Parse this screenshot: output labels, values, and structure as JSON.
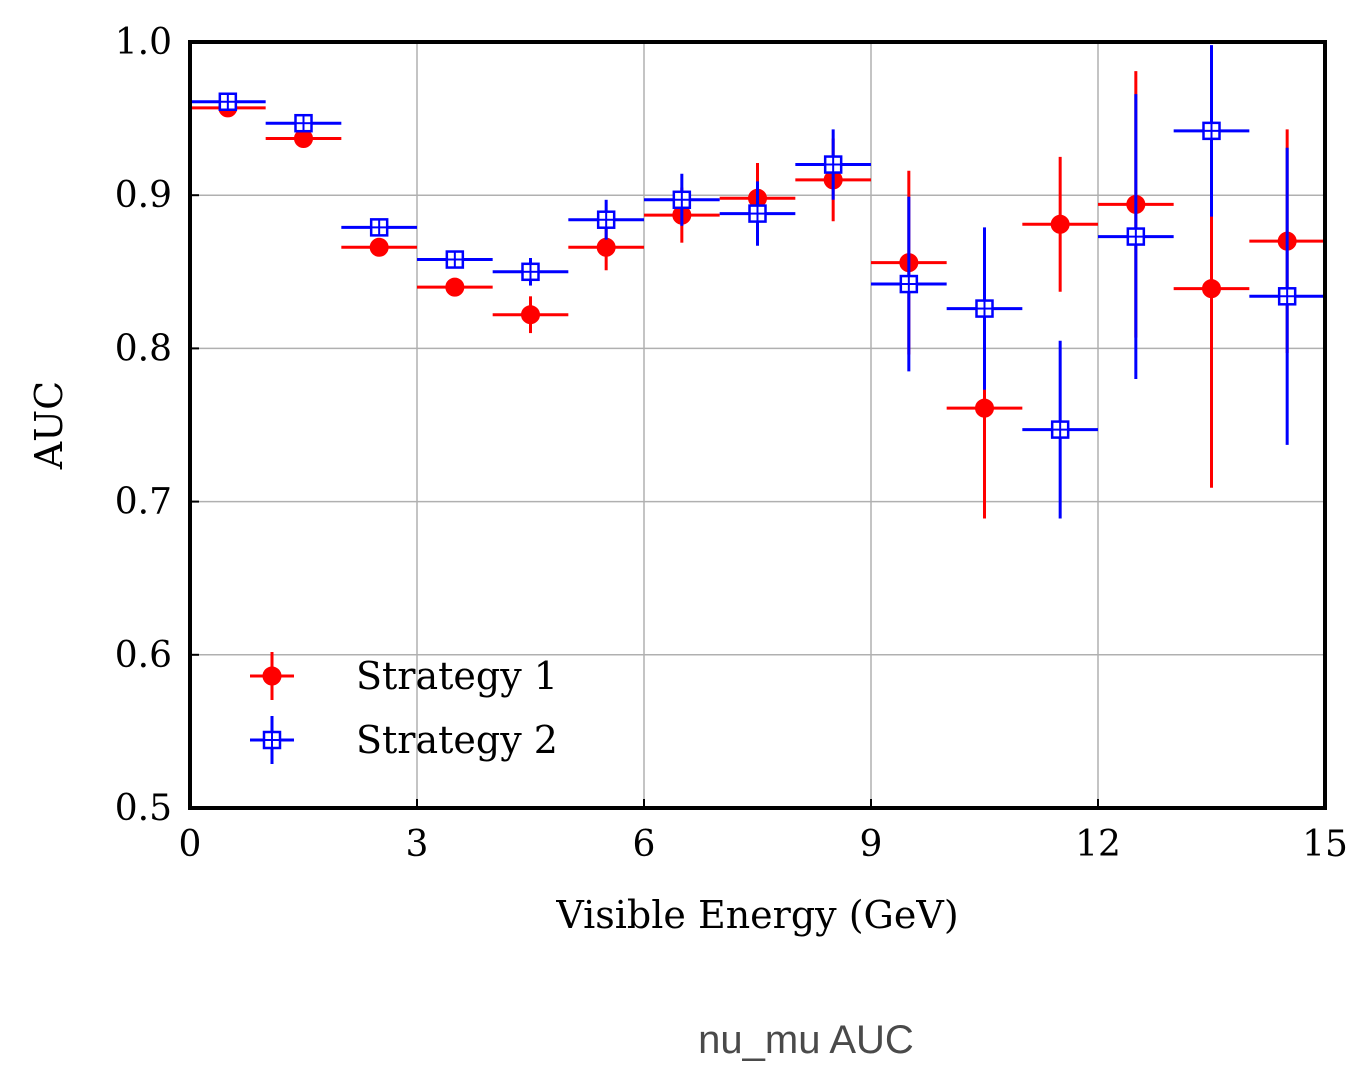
{
  "caption": "nu_mu AUC",
  "chart_data": {
    "type": "scatter",
    "xlabel": "Visible Energy (GeV)",
    "ylabel": "AUC",
    "xlim": [
      0,
      15
    ],
    "ylim": [
      0.5,
      1.0
    ],
    "xticks": [
      0,
      3,
      6,
      9,
      12,
      15
    ],
    "yticks": [
      0.5,
      0.6,
      0.7,
      0.8,
      0.9,
      1.0
    ],
    "xtick_labels": [
      "0",
      "3",
      "6",
      "9",
      "12",
      "15"
    ],
    "ytick_labels": [
      "0.5",
      "0.6",
      "0.7",
      "0.8",
      "0.9",
      "1.0"
    ],
    "grid": true,
    "legend_position": "lower-left",
    "x": [
      0.5,
      1.5,
      2.5,
      3.5,
      4.5,
      5.5,
      6.5,
      7.5,
      8.5,
      9.5,
      10.5,
      11.5,
      12.5,
      13.5,
      14.5
    ],
    "x_half_width": 0.5,
    "series": [
      {
        "name": "Strategy 1",
        "color": "#ff0000",
        "marker": "filled-circle",
        "values": [
          0.957,
          0.937,
          0.866,
          0.84,
          0.822,
          0.866,
          0.887,
          0.898,
          0.91,
          0.856,
          0.761,
          0.881,
          0.894,
          0.839,
          0.87
        ],
        "errors": [
          0.003,
          0.003,
          0.003,
          0.004,
          0.012,
          0.015,
          0.018,
          0.023,
          0.027,
          0.06,
          0.072,
          0.044,
          0.087,
          0.13,
          0.073
        ]
      },
      {
        "name": "Strategy 2",
        "color": "#0000ff",
        "marker": "open-square",
        "values": [
          0.961,
          0.947,
          0.879,
          0.858,
          0.85,
          0.884,
          0.897,
          0.888,
          0.92,
          0.842,
          0.826,
          0.747,
          0.873,
          0.942,
          0.834
        ],
        "errors": [
          0.002,
          0.003,
          0.004,
          0.004,
          0.009,
          0.013,
          0.017,
          0.021,
          0.023,
          0.057,
          0.053,
          0.058,
          0.093,
          0.056,
          0.097
        ]
      }
    ]
  }
}
